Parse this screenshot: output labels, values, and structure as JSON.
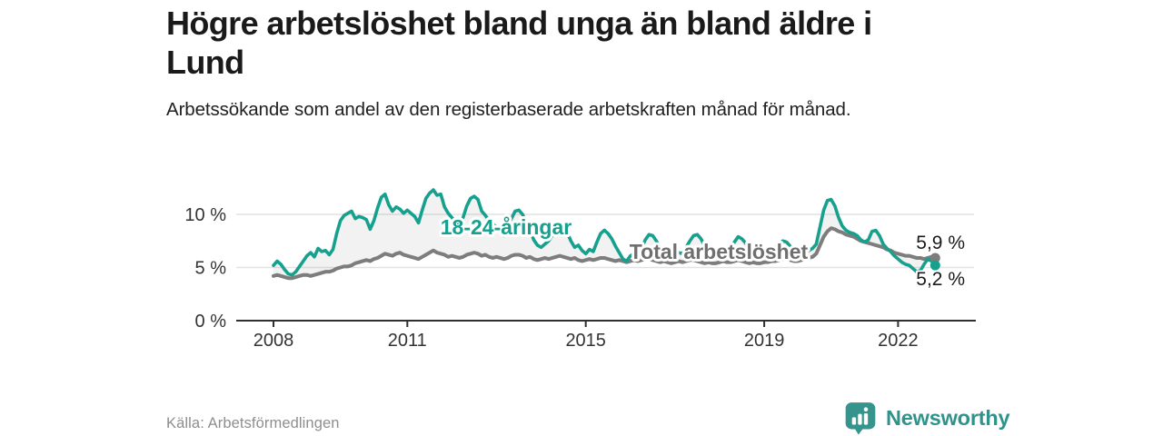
{
  "header": {
    "title_lines": [
      "Högre arbetslöshet bland unga än bland äldre i",
      "Lund"
    ],
    "subtitle": "Arbetssökande som andel av den registerbaserade arbetskraften månad för månad."
  },
  "footer": {
    "source": "Källa: Arbetsförmedlingen",
    "brand": "Newsworthy",
    "brand_icon": "bar-chart-speech-bubble"
  },
  "colors": {
    "youth_line": "#16a08e",
    "total_line": "#7d7d7d",
    "total_label": "#6f6f6f",
    "between_fill": "rgba(130,130,130,0.10)",
    "grid": "#e2e2e2",
    "axis": "#2f2f2f",
    "axis_text": "#333333",
    "brand_teal": "#2f938b"
  },
  "chart_data": {
    "type": "line",
    "title": "Högre arbetslöshet bland unga än bland äldre i Lund",
    "subtitle": "Arbetssökande som andel av den registerbaserade arbetskraften månad för månad.",
    "xlabel": "",
    "ylabel": "",
    "x_start": 2008,
    "x_interval": "monthly",
    "x_ticks": [
      2008,
      2011,
      2015,
      2019,
      2022
    ],
    "ylim": [
      0,
      13
    ],
    "ytick_values": [
      0,
      5,
      10
    ],
    "ytick_labels": [
      "0 %",
      "5 %",
      "10 %"
    ],
    "grid": "horizontal",
    "legend_position": "inline-labels",
    "area_between_series": true,
    "series": [
      {
        "name": "18-24-åringar",
        "color": "#16a08e",
        "end_label": "5,2 %",
        "end_value": 5.2,
        "values": [
          5.2,
          5.6,
          5.3,
          4.8,
          4.4,
          4.3,
          4.6,
          5.1,
          5.6,
          6.1,
          6.4,
          6.0,
          6.8,
          6.5,
          6.6,
          6.2,
          6.7,
          8.2,
          9.4,
          9.9,
          10.1,
          10.3,
          9.6,
          9.8,
          9.7,
          9.5,
          8.6,
          9.4,
          10.6,
          11.6,
          11.9,
          10.9,
          10.3,
          10.7,
          10.5,
          10.1,
          10.4,
          10.1,
          9.8,
          9.2,
          10.4,
          11.5,
          12.0,
          12.3,
          11.8,
          11.9,
          10.7,
          10.1,
          9.7,
          9.3,
          9.1,
          9.7,
          10.8,
          11.5,
          11.7,
          11.4,
          10.3,
          9.9,
          9.4,
          9.1,
          8.8,
          8.4,
          8.0,
          8.7,
          9.6,
          10.3,
          10.4,
          10.0,
          9.2,
          8.6,
          7.6,
          7.1,
          6.9,
          7.2,
          7.5,
          8.0,
          8.6,
          8.8,
          8.7,
          8.3,
          7.5,
          6.9,
          7.1,
          6.6,
          6.3,
          6.7,
          6.5,
          7.4,
          8.2,
          8.5,
          8.2,
          7.7,
          7.0,
          6.4,
          5.8,
          5.6,
          6.1,
          6.3,
          6.2,
          6.8,
          7.6,
          8.1,
          8.0,
          7.5,
          6.8,
          6.3,
          6.1,
          6.0,
          6.2,
          6.4,
          6.3,
          6.9,
          7.5,
          8.0,
          8.1,
          7.7,
          7.0,
          6.5,
          6.2,
          6.1,
          6.3,
          6.4,
          6.2,
          6.8,
          7.4,
          7.9,
          7.7,
          7.3,
          6.7,
          6.3,
          6.1,
          6.0,
          6.2,
          6.4,
          6.5,
          6.9,
          7.2,
          7.5,
          7.4,
          7.0,
          6.6,
          6.4,
          6.3,
          6.5,
          6.6,
          6.8,
          7.2,
          8.8,
          10.4,
          11.3,
          11.4,
          10.8,
          9.7,
          8.9,
          8.5,
          8.3,
          8.2,
          8.0,
          7.6,
          7.4,
          7.6,
          8.4,
          8.5,
          8.0,
          7.2,
          6.8,
          6.5,
          6.1,
          5.8,
          5.5,
          5.3,
          5.2,
          4.9,
          4.6,
          4.7,
          5.3,
          5.8,
          5.6,
          5.2
        ]
      },
      {
        "name": "Total arbetslöshet",
        "color": "#7d7d7d",
        "end_label": "5,9 %",
        "end_value": 5.9,
        "values": [
          4.2,
          4.3,
          4.2,
          4.1,
          4.0,
          4.0,
          4.1,
          4.2,
          4.3,
          4.3,
          4.2,
          4.3,
          4.4,
          4.5,
          4.6,
          4.6,
          4.7,
          4.9,
          5.0,
          5.1,
          5.1,
          5.2,
          5.4,
          5.5,
          5.6,
          5.7,
          5.6,
          5.8,
          5.9,
          6.1,
          6.3,
          6.2,
          6.1,
          6.3,
          6.4,
          6.2,
          6.1,
          6.0,
          5.9,
          5.8,
          6.0,
          6.2,
          6.4,
          6.6,
          6.4,
          6.3,
          6.2,
          6.0,
          6.1,
          6.0,
          5.9,
          6.0,
          6.2,
          6.3,
          6.4,
          6.3,
          6.1,
          6.2,
          6.0,
          5.9,
          6.0,
          5.9,
          5.8,
          5.9,
          6.1,
          6.2,
          6.2,
          6.1,
          5.9,
          6.0,
          5.8,
          5.7,
          5.8,
          5.9,
          5.8,
          5.9,
          6.0,
          6.1,
          6.0,
          5.9,
          5.8,
          5.9,
          5.7,
          5.6,
          5.7,
          5.8,
          5.7,
          5.8,
          5.9,
          5.9,
          5.8,
          5.7,
          5.6,
          5.7,
          5.6,
          5.5,
          5.6,
          5.7,
          5.6,
          5.7,
          5.8,
          5.8,
          5.7,
          5.6,
          5.5,
          5.6,
          5.5,
          5.4,
          5.5,
          5.6,
          5.5,
          5.6,
          5.7,
          5.7,
          5.6,
          5.5,
          5.4,
          5.5,
          5.4,
          5.4,
          5.5,
          5.6,
          5.5,
          5.5,
          5.6,
          5.7,
          5.6,
          5.5,
          5.4,
          5.5,
          5.4,
          5.4,
          5.5,
          5.5,
          5.6,
          5.6,
          5.7,
          5.8,
          5.8,
          5.7,
          5.6,
          5.6,
          5.7,
          5.8,
          5.9,
          6.0,
          6.3,
          7.1,
          7.9,
          8.4,
          8.7,
          8.6,
          8.4,
          8.3,
          8.1,
          8.0,
          7.9,
          7.7,
          7.5,
          7.4,
          7.3,
          7.2,
          7.1,
          7.0,
          6.9,
          6.7,
          6.6,
          6.4,
          6.3,
          6.2,
          6.1,
          6.1,
          6.0,
          5.9,
          5.9,
          5.8,
          5.9,
          6.0,
          5.9
        ]
      }
    ]
  }
}
